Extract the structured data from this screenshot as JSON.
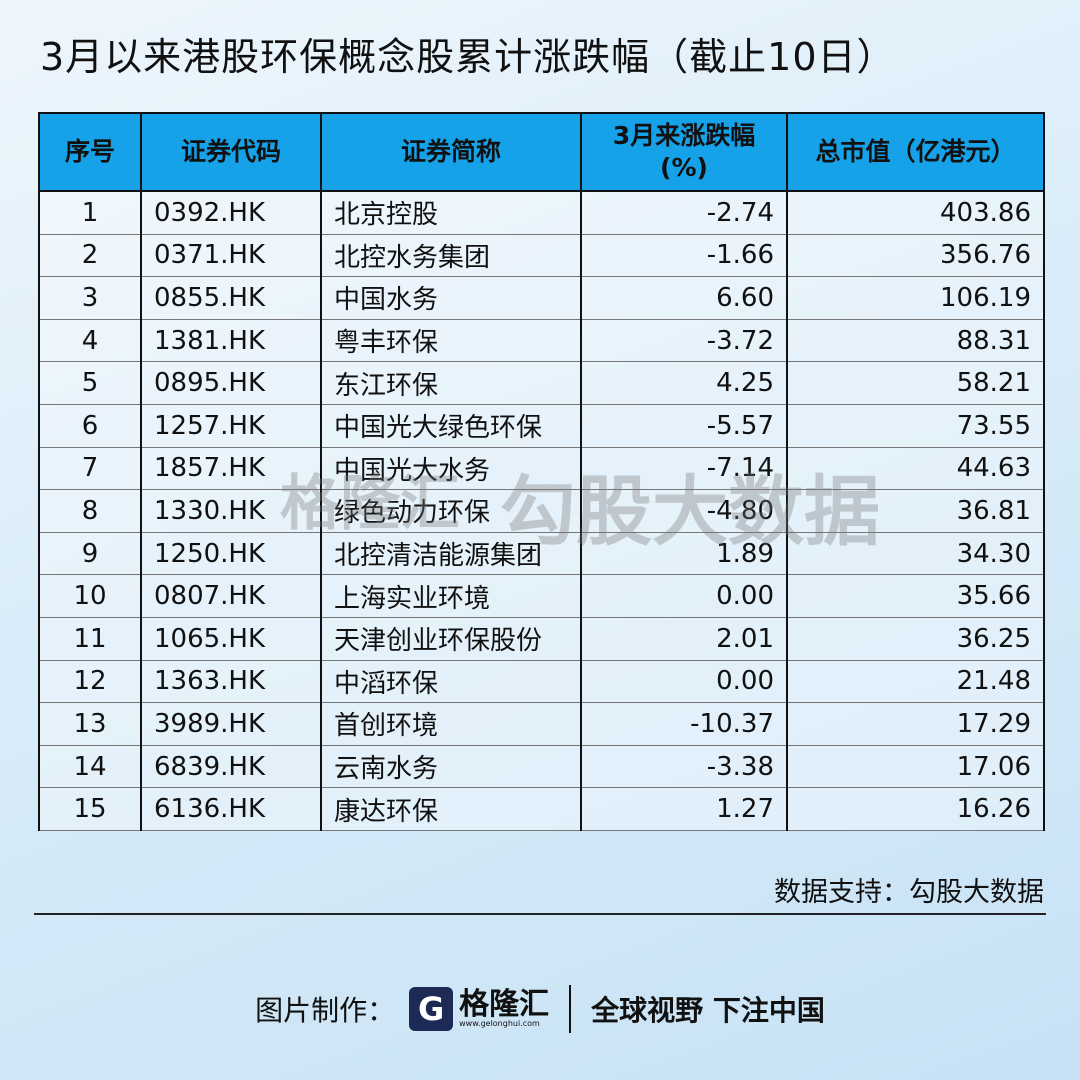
{
  "header": {
    "title": "3月以来港股环保概念股累计涨跌幅（截止10日）"
  },
  "table": {
    "headers": [
      [
        "序号"
      ],
      [
        "证券代码"
      ],
      [
        "证券简称"
      ],
      [
        "3月来涨跌幅",
        "(%)"
      ],
      [
        "总市值（亿港元）"
      ]
    ],
    "rows": [
      [
        "1",
        "0392.HK",
        "北京控股",
        "-2.74",
        "403.86"
      ],
      [
        "2",
        "0371.HK",
        "北控水务集团",
        "-1.66",
        "356.76"
      ],
      [
        "3",
        "0855.HK",
        "中国水务",
        "6.60",
        "106.19"
      ],
      [
        "4",
        "1381.HK",
        "粤丰环保",
        "-3.72",
        "88.31"
      ],
      [
        "5",
        "0895.HK",
        "东江环保",
        "4.25",
        "58.21"
      ],
      [
        "6",
        "1257.HK",
        "中国光大绿色环保",
        "-5.57",
        "73.55"
      ],
      [
        "7",
        "1857.HK",
        "中国光大水务",
        "-7.14",
        "44.63"
      ],
      [
        "8",
        "1330.HK",
        "绿色动力环保",
        "-4.80",
        "36.81"
      ],
      [
        "9",
        "1250.HK",
        "北控清洁能源集团",
        "1.89",
        "34.30"
      ],
      [
        "10",
        "0807.HK",
        "上海实业环境",
        "0.00",
        "35.66"
      ],
      [
        "11",
        "1065.HK",
        "天津创业环保股份",
        "2.01",
        "36.25"
      ],
      [
        "12",
        "1363.HK",
        "中滔环保",
        "0.00",
        "21.48"
      ],
      [
        "13",
        "3989.HK",
        "首创环境",
        "-10.37",
        "17.29"
      ],
      [
        "14",
        "6839.HK",
        "云南水务",
        "-3.38",
        "17.06"
      ],
      [
        "15",
        "6136.HK",
        "康达环保",
        "1.27",
        "16.26"
      ]
    ]
  },
  "watermark": {
    "brand": "格隆汇",
    "source": "勾股大数据"
  },
  "note": "数据支持：勾股大数据",
  "footer": {
    "label": "图片制作：",
    "brand": "格隆汇",
    "url": "www.gelonghui.com",
    "slogan": "全球视野 下注中国"
  }
}
